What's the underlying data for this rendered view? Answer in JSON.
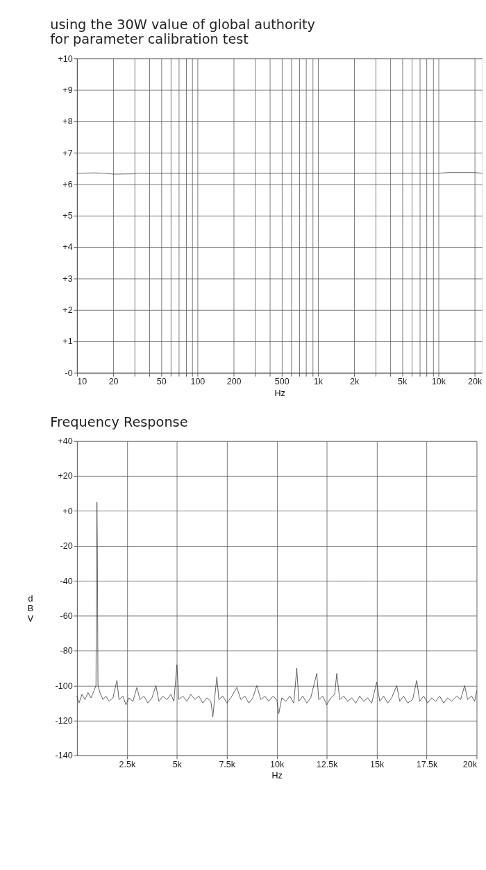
{
  "chart_data": [
    {
      "type": "line",
      "title": "using the 30W value of global authority\nfor parameter calibration test",
      "xlabel": "Hz",
      "log": "x",
      "grid": true,
      "marker": "none",
      "line_style": "solid",
      "xlim": [
        10,
        23000
      ],
      "ylim": [
        0,
        10
      ],
      "xticks": [
        10,
        20,
        {
          "value": 30,
          "label": null
        },
        {
          "value": 40,
          "label": null
        },
        50,
        {
          "value": 60,
          "label": null
        },
        {
          "value": 70,
          "label": null
        },
        {
          "value": 80,
          "label": null
        },
        {
          "value": 90,
          "label": null
        },
        100,
        200,
        {
          "value": 300,
          "label": null
        },
        {
          "value": 400,
          "label": null
        },
        500,
        {
          "value": 600,
          "label": null
        },
        {
          "value": 700,
          "label": null
        },
        {
          "value": 800,
          "label": null
        },
        {
          "value": 900,
          "label": null
        },
        {
          "value": 1000,
          "label": "1k"
        },
        {
          "value": 2000,
          "label": "2k"
        },
        {
          "value": 3000,
          "label": null
        },
        {
          "value": 4000,
          "label": null
        },
        {
          "value": 5000,
          "label": "5k"
        },
        {
          "value": 6000,
          "label": null
        },
        {
          "value": 7000,
          "label": null
        },
        {
          "value": 8000,
          "label": null
        },
        {
          "value": 9000,
          "label": null
        },
        {
          "value": 10000,
          "label": "10k"
        },
        {
          "value": 20000,
          "label": "20k"
        }
      ],
      "yticks": [
        {
          "value": 0,
          "label": "-0"
        },
        {
          "value": 1,
          "label": "+1"
        },
        {
          "value": 2,
          "label": "+2"
        },
        {
          "value": 3,
          "label": "+3"
        },
        {
          "value": 4,
          "label": "+4"
        },
        {
          "value": 5,
          "label": "+5"
        },
        {
          "value": 6,
          "label": "+6"
        },
        {
          "value": 7,
          "label": "+7"
        },
        {
          "value": 8,
          "label": "+8"
        },
        {
          "value": 9,
          "label": "+9"
        },
        {
          "value": 10,
          "label": "+10"
        }
      ],
      "series": [
        {
          "color": "#333333",
          "x": [
            10,
            14,
            17,
            20,
            30,
            31,
            100,
            1000,
            10000,
            12000,
            20000,
            23000
          ],
          "values": [
            6.35,
            6.36,
            6.35,
            6.32,
            6.33,
            6.35,
            6.35,
            6.35,
            6.35,
            6.37,
            6.37,
            6.35
          ]
        }
      ]
    },
    {
      "type": "line",
      "title": "Frequency Response",
      "xlabel": "Hz",
      "ylabel": "dBV",
      "grid": true,
      "marker": "none",
      "line_style": "solid",
      "xlim": [
        0,
        20000
      ],
      "ylim": [
        -140,
        40
      ],
      "xticks": [
        {
          "value": 2500,
          "label": "2.5k"
        },
        {
          "value": 5000,
          "label": "5k"
        },
        {
          "value": 7500,
          "label": "7.5k"
        },
        {
          "value": 10000,
          "label": "10k"
        },
        {
          "value": 12500,
          "label": "12.5k"
        },
        {
          "value": 15000,
          "label": "15k"
        },
        {
          "value": 17500,
          "label": "17.5k"
        },
        {
          "value": 20000,
          "label": "20k"
        }
      ],
      "yticks": [
        {
          "value": -140,
          "label": "-140"
        },
        {
          "value": -120,
          "label": "-120"
        },
        {
          "value": -100,
          "label": "-100"
        },
        {
          "value": -80,
          "label": "-80"
        },
        {
          "value": -60,
          "label": "-60"
        },
        {
          "value": -40,
          "label": "-40"
        },
        {
          "value": -20,
          "label": "-20"
        },
        {
          "value": 0,
          "label": "+0"
        },
        {
          "value": 20,
          "label": "+20"
        },
        {
          "value": 40,
          "label": "+40"
        }
      ],
      "series": [
        {
          "color": "#333333",
          "x": [
            0,
            100,
            250,
            400,
            550,
            700,
            850,
            950,
            980,
            1000,
            1020,
            1050,
            1150,
            1300,
            1450,
            1600,
            1800,
            2000,
            2100,
            2300,
            2450,
            2600,
            2800,
            3000,
            3150,
            3350,
            3550,
            3750,
            3950,
            4100,
            4300,
            4500,
            4700,
            4850,
            5000,
            5100,
            5300,
            5500,
            5700,
            5900,
            6100,
            6300,
            6500,
            6700,
            6800,
            6900,
            7000,
            7100,
            7300,
            7500,
            7700,
            8000,
            8200,
            8400,
            8600,
            8800,
            9000,
            9200,
            9400,
            9600,
            9800,
            10000,
            10100,
            10250,
            10450,
            10650,
            10850,
            11000,
            11100,
            11300,
            11500,
            11700,
            12000,
            12100,
            12300,
            12500,
            12700,
            12900,
            13000,
            13150,
            13350,
            13550,
            13750,
            13950,
            14150,
            14350,
            14550,
            14750,
            15000,
            15150,
            15350,
            15550,
            15750,
            16000,
            16150,
            16350,
            16550,
            16800,
            17000,
            17150,
            17350,
            17550,
            17750,
            17950,
            18150,
            18350,
            18550,
            18750,
            19000,
            19200,
            19400,
            19550,
            19750,
            19900,
            20000
          ],
          "values": [
            -106,
            -110,
            -105,
            -108,
            -104,
            -107,
            -103,
            -100,
            -27,
            5,
            -20,
            -100,
            -104,
            -108,
            -106,
            -109,
            -107,
            -97,
            -108,
            -106,
            -111,
            -107,
            -109,
            -101,
            -108,
            -106,
            -110,
            -107,
            -100,
            -109,
            -106,
            -108,
            -105,
            -109,
            -88,
            -108,
            -106,
            -109,
            -105,
            -108,
            -106,
            -110,
            -107,
            -109,
            -118,
            -106,
            -95,
            -108,
            -106,
            -110,
            -107,
            -101,
            -108,
            -106,
            -110,
            -107,
            -100,
            -108,
            -106,
            -109,
            -106,
            -108,
            -116,
            -107,
            -109,
            -106,
            -110,
            -90,
            -109,
            -106,
            -110,
            -107,
            -93,
            -108,
            -106,
            -111,
            -107,
            -105,
            -93,
            -108,
            -106,
            -109,
            -107,
            -110,
            -106,
            -109,
            -107,
            -110,
            -98,
            -109,
            -106,
            -110,
            -107,
            -100,
            -109,
            -106,
            -110,
            -108,
            -97,
            -109,
            -106,
            -110,
            -107,
            -109,
            -106,
            -110,
            -107,
            -109,
            -106,
            -108,
            -100,
            -108,
            -106,
            -109,
            -103
          ]
        }
      ]
    }
  ]
}
